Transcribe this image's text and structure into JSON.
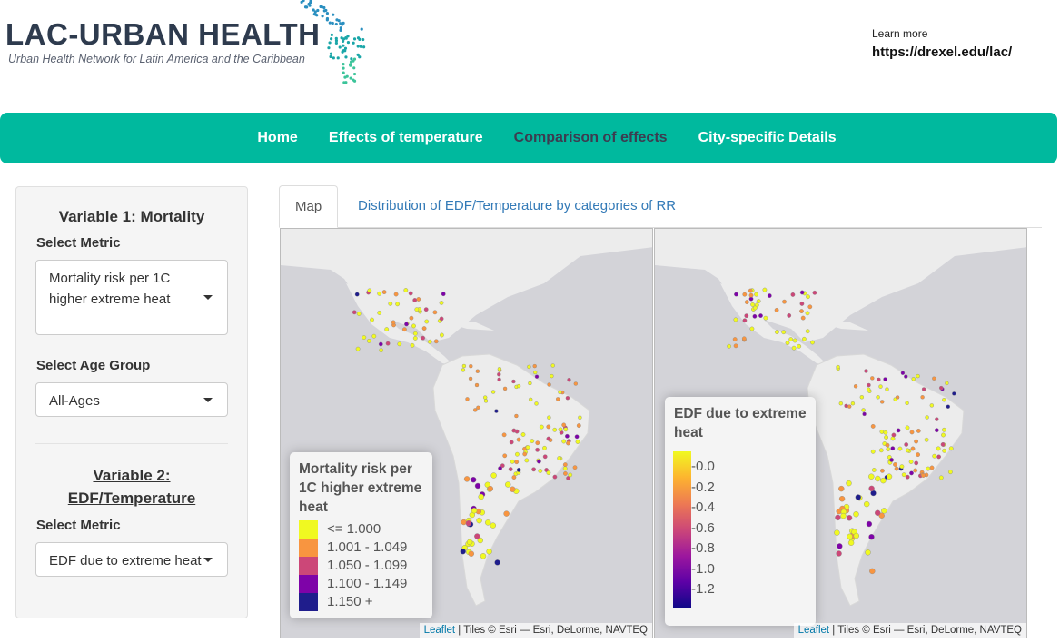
{
  "header": {
    "logo_title": "LAC-URBAN HEALTH",
    "logo_subtitle": "Urban Health Network for Latin America and the Caribbean",
    "learn_more": "Learn more",
    "learn_more_url": "https://drexel.edu/lac/"
  },
  "nav": {
    "items": [
      {
        "label": "Home",
        "active": false
      },
      {
        "label": "Effects of temperature",
        "active": false
      },
      {
        "label": "Comparison of effects",
        "active": true
      },
      {
        "label": "City-specific Details",
        "active": false
      }
    ],
    "color": "#00b99e"
  },
  "sidebar": {
    "var1_heading": "Variable 1: Mortality",
    "var1_metric_label": "Select Metric",
    "var1_metric_value": "Mortality risk per 1C higher extreme heat",
    "age_label": "Select Age Group",
    "age_value": "All-Ages",
    "var2_heading_line1": "Variable 2:",
    "var2_heading_line2": "EDF/Temperature",
    "var2_metric_label": "Select Metric",
    "var2_metric_value": "EDF due to extreme heat"
  },
  "tabs": [
    {
      "label": "Map",
      "active": true
    },
    {
      "label": "Distribution of EDF/Temperature by categories of RR",
      "active": false
    }
  ],
  "map_left": {
    "legend_title": "Mortality risk per 1C higher extreme heat",
    "legend_items": [
      {
        "label": "<= 1.000",
        "color": "#f0f921"
      },
      {
        "label": "1.001 - 1.049",
        "color": "#f89540"
      },
      {
        "label": "1.050 - 1.099",
        "color": "#cc4778"
      },
      {
        "label": "1.100 - 1.149",
        "color": "#7e03a8"
      },
      {
        "label": "1.150 +",
        "color": "#1f1d8c"
      }
    ]
  },
  "map_right": {
    "legend_title": "EDF due to extreme heat",
    "legend_ticks": [
      "0.0",
      "0.2",
      "0.4",
      "0.6",
      "0.8",
      "1.0",
      "1.2"
    ],
    "gradient": [
      "#f0f921",
      "#fdb42f",
      "#ed7953",
      "#cc4778",
      "#9c179e",
      "#5c01a6",
      "#0d0887"
    ]
  },
  "attribution": {
    "leaflet": "Leaflet",
    "tiles": " | Tiles © Esri — Esri, DeLorme, NAVTEQ"
  }
}
